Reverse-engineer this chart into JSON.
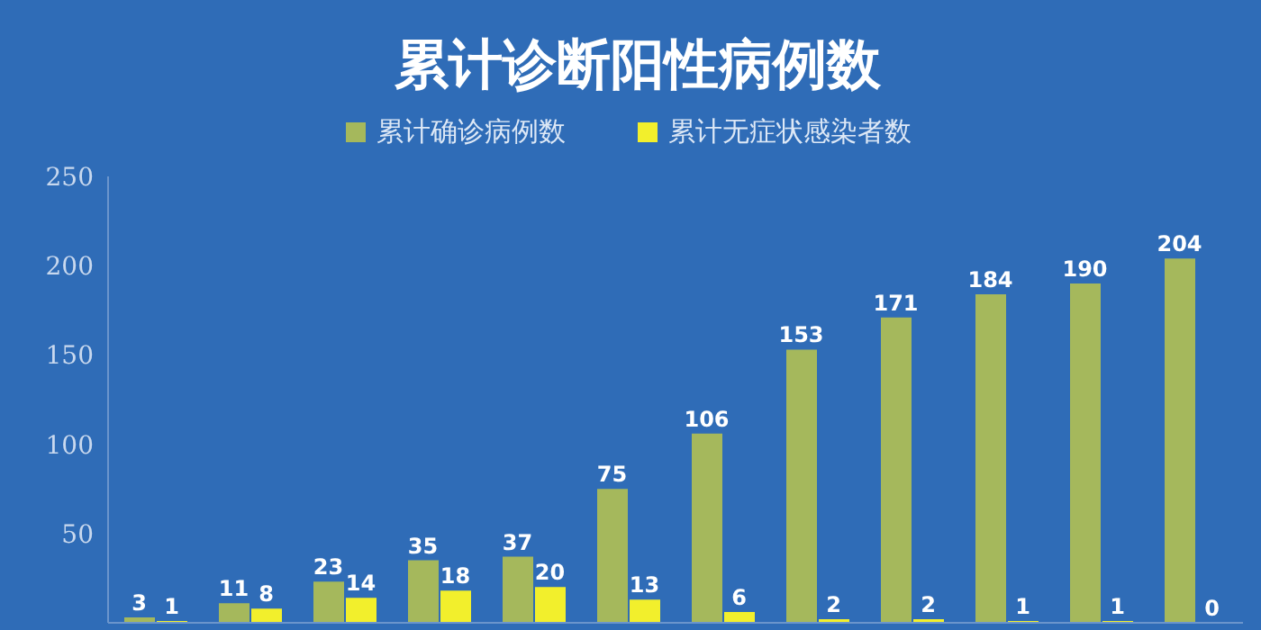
{
  "chart_data": {
    "type": "bar",
    "title": "累计诊断阳性病例数",
    "categories": [
      null,
      null,
      null,
      null,
      null,
      null,
      null,
      null,
      null,
      null,
      null,
      null
    ],
    "series": [
      {
        "name": "累计确诊病例数",
        "color": "#a5b85c",
        "values": [
          3,
          11,
          23,
          35,
          37,
          75,
          106,
          153,
          171,
          184,
          190,
          204
        ]
      },
      {
        "name": "累计无症状感染者数",
        "color": "#f2ef2c",
        "values": [
          1,
          8,
          14,
          18,
          20,
          13,
          6,
          2,
          2,
          1,
          1,
          0
        ]
      }
    ],
    "ylim": [
      0,
      250
    ],
    "yticks": [
      50,
      100,
      150,
      200,
      250
    ],
    "data_labels": true,
    "legend": "top",
    "grid": false,
    "tick_labels": "y"
  }
}
